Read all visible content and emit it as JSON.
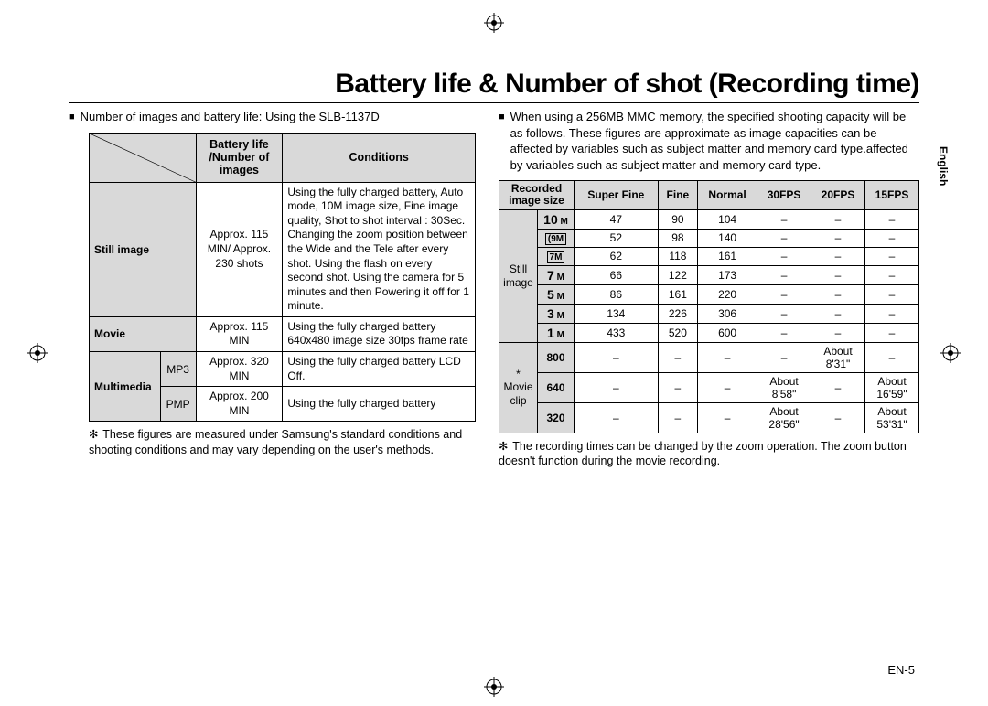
{
  "title": "Battery life & Number of shot (Recording time)",
  "language_tab": "English",
  "page_number": "EN-5",
  "left": {
    "lead": "Number of images and battery life: Using the SLB-1137D",
    "table": {
      "headers": {
        "col2": "Battery life /Number of images",
        "col3": "Conditions"
      },
      "rows": {
        "still": {
          "label": "Still image",
          "value": "Approx. 115 MIN/ Approx. 230 shots",
          "cond": "Using the fully charged battery, Auto mode, 10M image size, Fine image quality, Shot to shot interval : 30Sec. Changing the zoom position between the Wide and the Tele after every shot. Using the flash on every second shot. Using the camera for 5 minutes and then Powering it off for 1 minute."
        },
        "movie": {
          "label": "Movie",
          "value": "Approx. 115 MIN",
          "cond": "Using the fully charged battery 640x480 image size 30fps frame rate"
        },
        "mm_label": "Multimedia",
        "mp3": {
          "sub": "MP3",
          "value": "Approx. 320 MIN",
          "cond": "Using the fully charged battery LCD Off."
        },
        "pmp": {
          "sub": "PMP",
          "value": "Approx. 200 MIN",
          "cond": "Using the fully charged battery"
        }
      }
    },
    "footnote": "These figures are measured under Samsung's standard conditions and shooting conditions and may vary depending on the user's methods."
  },
  "right": {
    "lead": "When using a 256MB MMC memory, the specified shooting capacity will be as follows. These figures are approximate as image capacities can be affected by variables such as subject matter and memory card type.affected by variables such as subject matter and memory card type.",
    "table": {
      "headers": {
        "col1a": "Recorded",
        "col1b": "image size",
        "sf": "Super Fine",
        "fine": "Fine",
        "normal": "Normal",
        "f30": "30FPS",
        "f20": "20FPS",
        "f15": "15FPS"
      },
      "groups": {
        "still": "Still image",
        "movie": "* Movie clip"
      },
      "still_rows": [
        {
          "size": "10",
          "sym": "M",
          "sf": "47",
          "fine": "90",
          "normal": "104",
          "f30": "–",
          "f20": "–",
          "f15": "–"
        },
        {
          "size": "9",
          "sym": "M",
          "icon": true,
          "sf": "52",
          "fine": "98",
          "normal": "140",
          "f30": "–",
          "f20": "–",
          "f15": "–"
        },
        {
          "size": "7",
          "sym": "M",
          "icon2": true,
          "sf": "62",
          "fine": "118",
          "normal": "161",
          "f30": "–",
          "f20": "–",
          "f15": "–"
        },
        {
          "size": "7",
          "sym": "M",
          "sf": "66",
          "fine": "122",
          "normal": "173",
          "f30": "–",
          "f20": "–",
          "f15": "–"
        },
        {
          "size": "5",
          "sym": "M",
          "sf": "86",
          "fine": "161",
          "normal": "220",
          "f30": "–",
          "f20": "–",
          "f15": "–"
        },
        {
          "size": "3",
          "sym": "M",
          "sf": "134",
          "fine": "226",
          "normal": "306",
          "f30": "–",
          "f20": "–",
          "f15": "–"
        },
        {
          "size": "1",
          "sym": "M",
          "sf": "433",
          "fine": "520",
          "normal": "600",
          "f30": "–",
          "f20": "–",
          "f15": "–"
        }
      ],
      "movie_rows": [
        {
          "size": "800",
          "sf": "–",
          "fine": "–",
          "normal": "–",
          "f30": "–",
          "f20": "About 8'31\"",
          "f15": "–"
        },
        {
          "size": "640",
          "sf": "–",
          "fine": "–",
          "normal": "–",
          "f30": "About 8'58\"",
          "f20": "–",
          "f15": "About 16'59\""
        },
        {
          "size": "320",
          "sf": "–",
          "fine": "–",
          "normal": "–",
          "f30": "About 28'56\"",
          "f20": "–",
          "f15": "About 53'31\""
        }
      ]
    },
    "footnote": "The recording times can be changed by the zoom operation. The zoom button doesn't function during the movie recording."
  }
}
